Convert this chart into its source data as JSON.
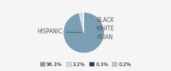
{
  "labels": [
    "HISPANIC",
    "WHITE",
    "BLACK",
    "ASIAN"
  ],
  "values": [
    96.3,
    3.2,
    0.3,
    0.2
  ],
  "colors": [
    "#7a9fb5",
    "#c8dce8",
    "#1f3a5f",
    "#b0c8d8"
  ],
  "legend_labels": [
    "96.3%",
    "3.2%",
    "0.3%",
    "0.2%"
  ],
  "legend_colors": [
    "#7a9fb5",
    "#c8dce8",
    "#1f3a5f",
    "#b0c8d8"
  ],
  "bg_color": "#f5f5f5",
  "text_color": "#555555",
  "font_size": 5.5
}
